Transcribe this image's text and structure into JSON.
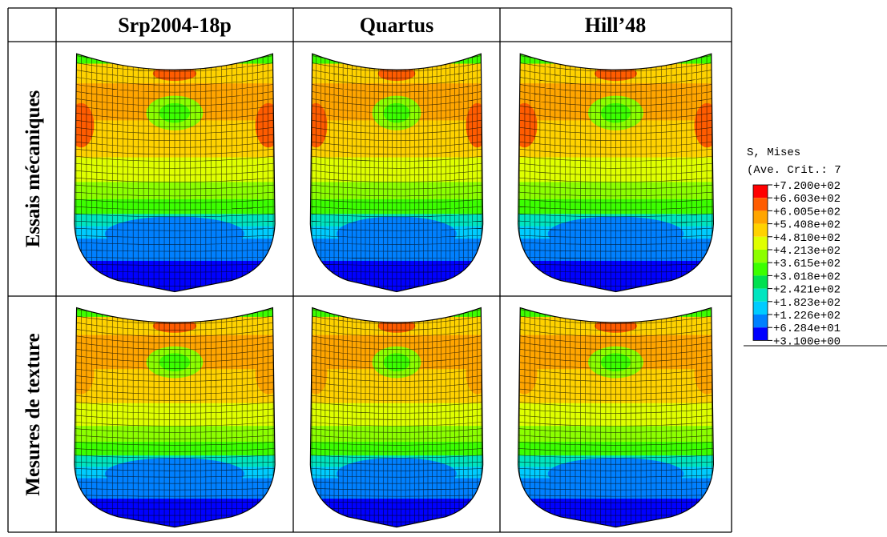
{
  "table": {
    "header": [
      "Srp2004-18p",
      "Quartus",
      "Hill’48"
    ],
    "rows": [
      {
        "label": "Essais mécaniques"
      },
      {
        "label": "Mesures de texture"
      }
    ]
  },
  "legend": {
    "title": "S, Mises",
    "subtitle": "(Ave. Crit.: 7",
    "labels": [
      "+7.200e+02",
      "+6.603e+02",
      "+6.005e+02",
      "+5.408e+02",
      "+4.810e+02",
      "+4.213e+02",
      "+3.615e+02",
      "+3.018e+02",
      "+2.421e+02",
      "+1.823e+02",
      "+1.226e+02",
      "+6.284e+01",
      "+3.100e+00"
    ],
    "colors": [
      "#ff0000",
      "#ff5c00",
      "#ffa500",
      "#ffd200",
      "#dfff00",
      "#8cff00",
      "#3cff00",
      "#00e050",
      "#00e5c0",
      "#00ccff",
      "#0080ff",
      "#0000ff"
    ]
  }
}
